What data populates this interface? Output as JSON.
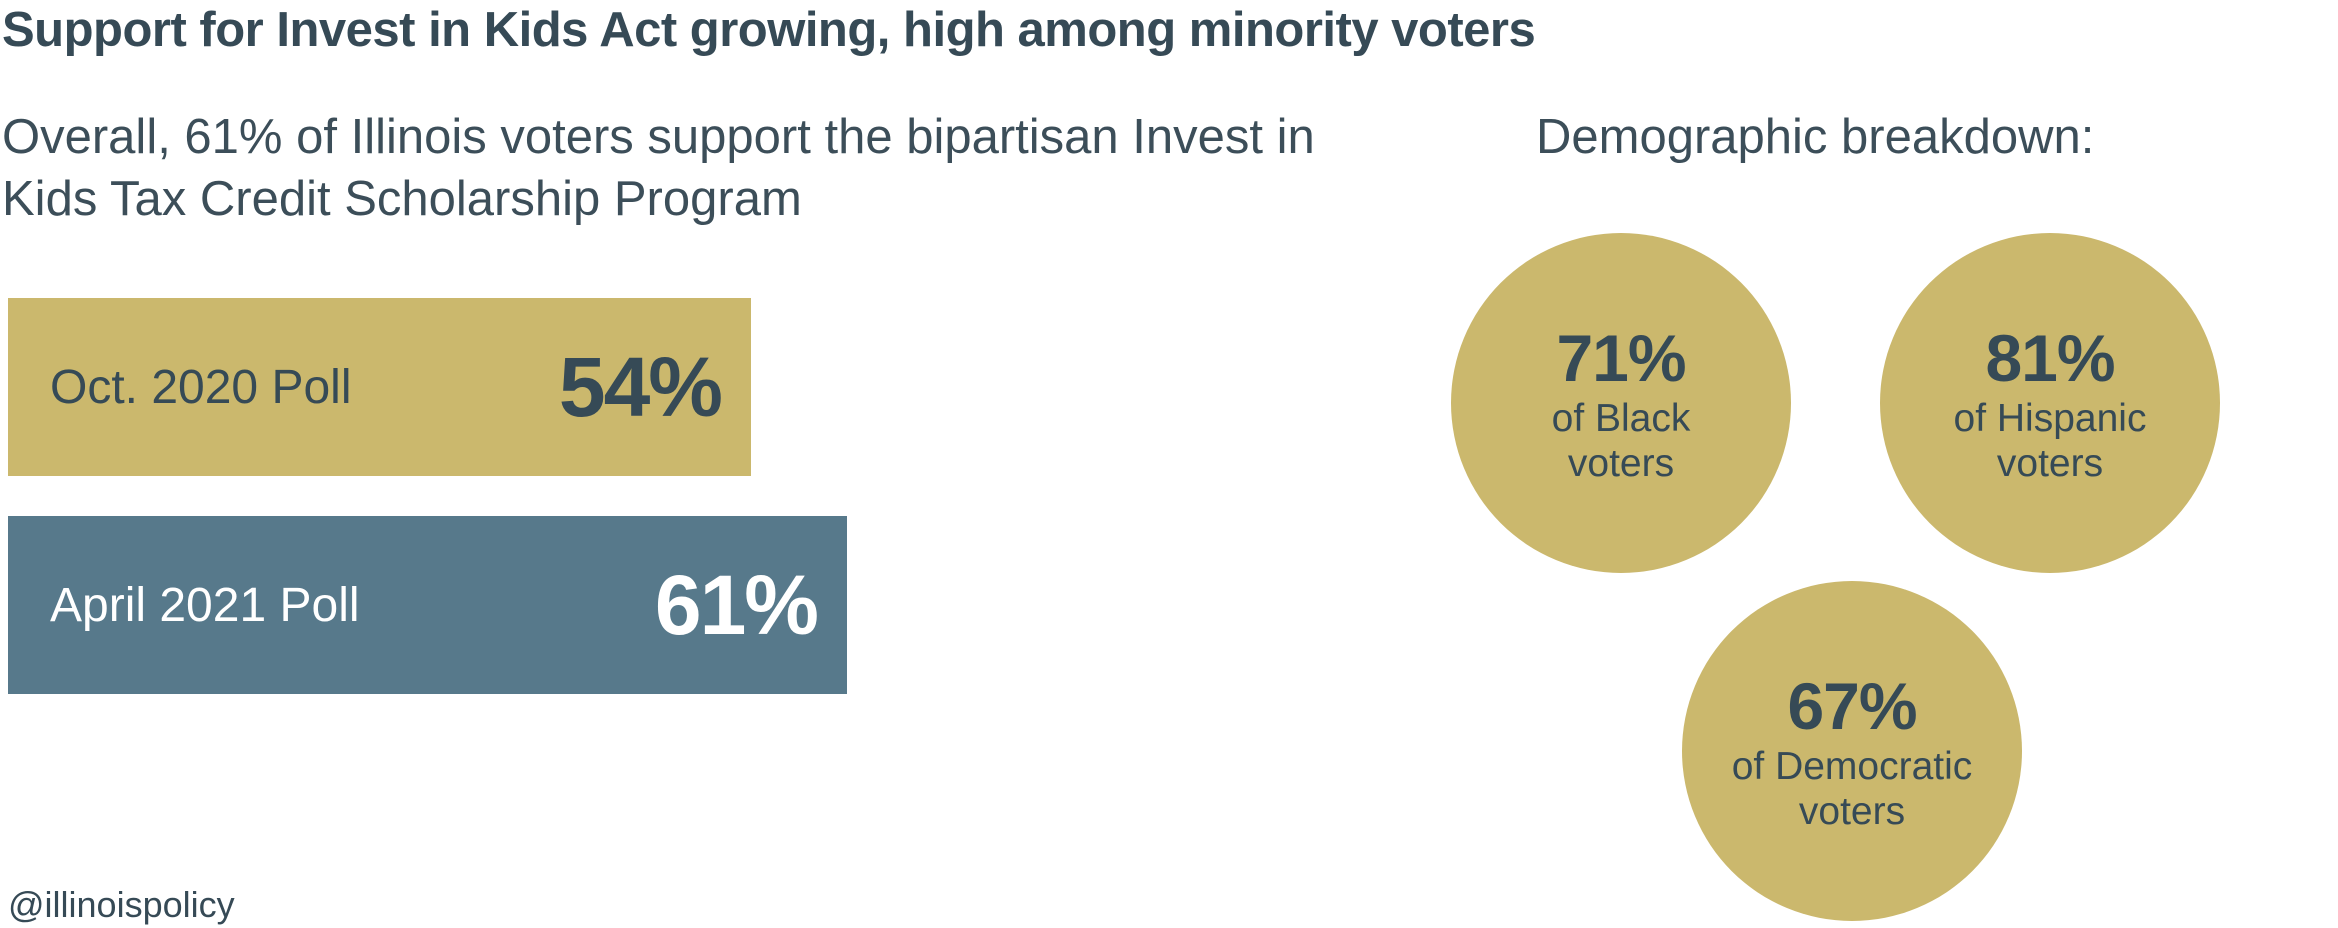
{
  "title": "Support for Invest in Kids Act growing, high among minority voters",
  "subtitle": "Overall, 61% of Illinois voters support the bipartisan Invest in Kids Tax Credit Scholarship Program",
  "demographics_heading": "Demographic breakdown:",
  "footer": "@illinoispolicy",
  "colors": {
    "gold": "#cbb86d",
    "steel_blue": "#57798b",
    "text_dark": "#364a56",
    "white": "#ffffff"
  },
  "chart_data": [
    {
      "type": "bar",
      "orientation": "horizontal",
      "categories": [
        "Oct. 2020 Poll",
        "April 2021 Poll"
      ],
      "values": [
        54,
        61
      ],
      "value_labels": [
        "54%",
        "61%"
      ],
      "unit": "%",
      "colors": [
        "#cbb86d",
        "#57798b"
      ],
      "grid": false
    },
    {
      "type": "bubble",
      "items": [
        {
          "value": 71,
          "value_label": "71%",
          "label_line1": "of Black",
          "label_line2": "voters"
        },
        {
          "value": 81,
          "value_label": "81%",
          "label_line1": "of Hispanic",
          "label_line2": "voters"
        },
        {
          "value": 67,
          "value_label": "67%",
          "label_line1": "of Democratic",
          "label_line2": "voters"
        }
      ],
      "unit": "%"
    }
  ]
}
